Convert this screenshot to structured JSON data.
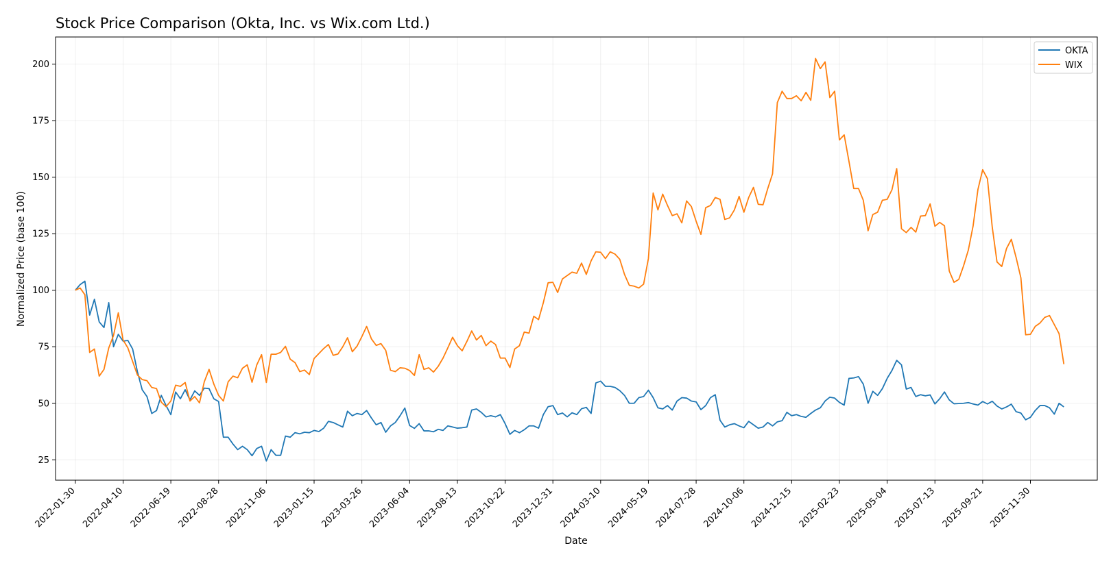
{
  "chart_data": {
    "type": "line",
    "title": "Stock Price Comparison (Okta, Inc. vs Wix.com Ltd.)",
    "xlabel": "Date",
    "ylabel": "Normalized Price (base 100)",
    "xlim": [
      "2022-01-01",
      "2026-03-08"
    ],
    "ylim": [
      16,
      212
    ],
    "x_ticks": [
      "2022-01-30",
      "2022-04-10",
      "2022-06-19",
      "2022-08-28",
      "2022-11-06",
      "2023-01-15",
      "2023-03-26",
      "2023-06-04",
      "2023-08-13",
      "2023-10-22",
      "2023-12-31",
      "2024-03-10",
      "2024-05-19",
      "2024-07-28",
      "2024-10-06",
      "2024-12-15",
      "2025-02-23",
      "2025-05-04",
      "2025-07-13",
      "2025-09-21",
      "2025-11-30"
    ],
    "y_ticks": [
      25,
      50,
      75,
      100,
      125,
      150,
      175,
      200
    ],
    "grid": true,
    "legend_position": "top-right",
    "start_date": "2022-01-30",
    "step_days": 7,
    "series": [
      {
        "name": "OKTA",
        "color": "#1f77b4",
        "values": [
          100,
          102.5,
          104,
          89,
          96,
          86,
          83.5,
          94.5,
          75,
          80.5,
          77.5,
          77.8,
          74,
          64,
          56,
          53,
          45.5,
          46.8,
          53.5,
          49,
          45,
          55,
          52,
          56,
          51.5,
          55.5,
          53.5,
          56.7,
          56.5,
          52,
          50.8,
          35,
          35,
          32,
          29.5,
          31,
          29.5,
          26.8,
          30,
          31,
          24.5,
          29.5,
          27,
          27,
          35.5,
          35,
          37,
          36.5,
          37.2,
          37,
          38,
          37.5,
          39,
          42,
          41.5,
          40.5,
          39.5,
          46.5,
          44.5,
          45.5,
          45,
          46.8,
          43.5,
          40.5,
          41.5,
          37.2,
          40,
          41.5,
          44.5,
          47.9,
          40.2,
          38.9,
          41,
          37.8,
          37.8,
          37.4,
          38.5,
          38,
          40,
          39.5,
          39,
          39.2,
          39.5,
          47,
          47.5,
          46,
          44,
          44.5,
          44,
          45,
          41,
          36.3,
          38,
          37,
          38.3,
          40,
          40,
          39,
          45,
          48.5,
          49,
          45,
          45.7,
          44,
          45.8,
          45,
          47.6,
          48.2,
          45.5,
          59,
          59.8,
          57.5,
          57.5,
          57,
          55.6,
          53.5,
          50,
          50,
          52.5,
          53,
          55.8,
          52.5,
          48,
          47.5,
          49,
          47,
          51,
          52.5,
          52.3,
          51,
          50.6,
          47.2,
          49,
          52.5,
          53.8,
          42.5,
          39.5,
          40.5,
          41,
          40,
          39.2,
          42,
          40.5,
          39,
          39.5,
          41.5,
          40,
          41.8,
          42.3,
          46,
          44.5,
          45,
          44.2,
          43.8,
          45.5,
          47,
          48,
          51,
          52.7,
          52.3,
          50.4,
          49.2,
          61,
          61.2,
          61.8,
          58.5,
          50,
          55.3,
          53.5,
          56.5,
          61,
          64.5,
          69,
          67,
          56.3,
          57,
          53,
          53.8,
          53.3,
          53.7,
          49.7,
          52,
          55,
          51.5,
          49.8,
          49.9,
          50,
          50.3,
          49.7,
          49.2,
          50.8,
          49.7,
          50.9,
          48.8,
          47.5,
          48.4,
          49.6,
          46.3,
          45.7,
          42.7,
          43.8,
          46.8,
          49,
          49,
          48,
          45.2,
          50,
          48.4
        ]
      },
      {
        "name": "WIX",
        "color": "#ff7f0e",
        "values": [
          100,
          101,
          98,
          72.5,
          74,
          62,
          65,
          74.5,
          80,
          90,
          78,
          74.5,
          68.5,
          62.5,
          60.5,
          60,
          57,
          56.5,
          50.5,
          48.5,
          51,
          58,
          57.5,
          59.2,
          51,
          53,
          50.2,
          59.5,
          65,
          58.5,
          53.5,
          51,
          59.5,
          62,
          61.3,
          65.5,
          67,
          59.3,
          67,
          71.5,
          59.2,
          71.7,
          71.7,
          72.5,
          75.2,
          69.5,
          68,
          64,
          64.7,
          62.7,
          69.8,
          72,
          74.2,
          76,
          71.2,
          71.8,
          75,
          79,
          72.8,
          75.3,
          79.5,
          84,
          78.5,
          75.6,
          76.4,
          73.4,
          64.6,
          64,
          65.7,
          65.5,
          64.5,
          62.3,
          71.5,
          65,
          65.7,
          63.8,
          66.4,
          70,
          74.5,
          79.2,
          75.5,
          73.2,
          77.4,
          82,
          78,
          80,
          75.5,
          77.5,
          76,
          70,
          70,
          65.8,
          74,
          75.5,
          81.5,
          81,
          88.5,
          87,
          94.5,
          103.3,
          103.5,
          99,
          105,
          106.5,
          108,
          107.5,
          112,
          107,
          113,
          117,
          116.8,
          114,
          117,
          116,
          113.7,
          107,
          102.2,
          101.8,
          101,
          102.7,
          114,
          143,
          135.5,
          142.5,
          137.5,
          133,
          133.8,
          129.8,
          139.5,
          137,
          130.5,
          124.7,
          136.5,
          137.5,
          141,
          140.2,
          131.3,
          132,
          135.5,
          141.5,
          134.5,
          141,
          145.5,
          138,
          137.8,
          145,
          151.5,
          183,
          188,
          184.8,
          184.8,
          186,
          183.8,
          187.5,
          184,
          202.5,
          198,
          201,
          185.2,
          188,
          166.5,
          168.7,
          157,
          145,
          145,
          139.8,
          126.3,
          133.5,
          134.5,
          139.8,
          140.2,
          144.4,
          153.8,
          127.2,
          125.5,
          127.8,
          125.7,
          132.8,
          133,
          138.2,
          128.3,
          130,
          128.5,
          108.5,
          103.5,
          104.8,
          110.8,
          117.8,
          128.5,
          144.5,
          153.3,
          149.3,
          128,
          112.5,
          110.5,
          118.5,
          122.5,
          114.5,
          105.5,
          80.3,
          80.5,
          84,
          85.5,
          88,
          88.8,
          84.8,
          80.8,
          67.3
        ]
      }
    ]
  }
}
